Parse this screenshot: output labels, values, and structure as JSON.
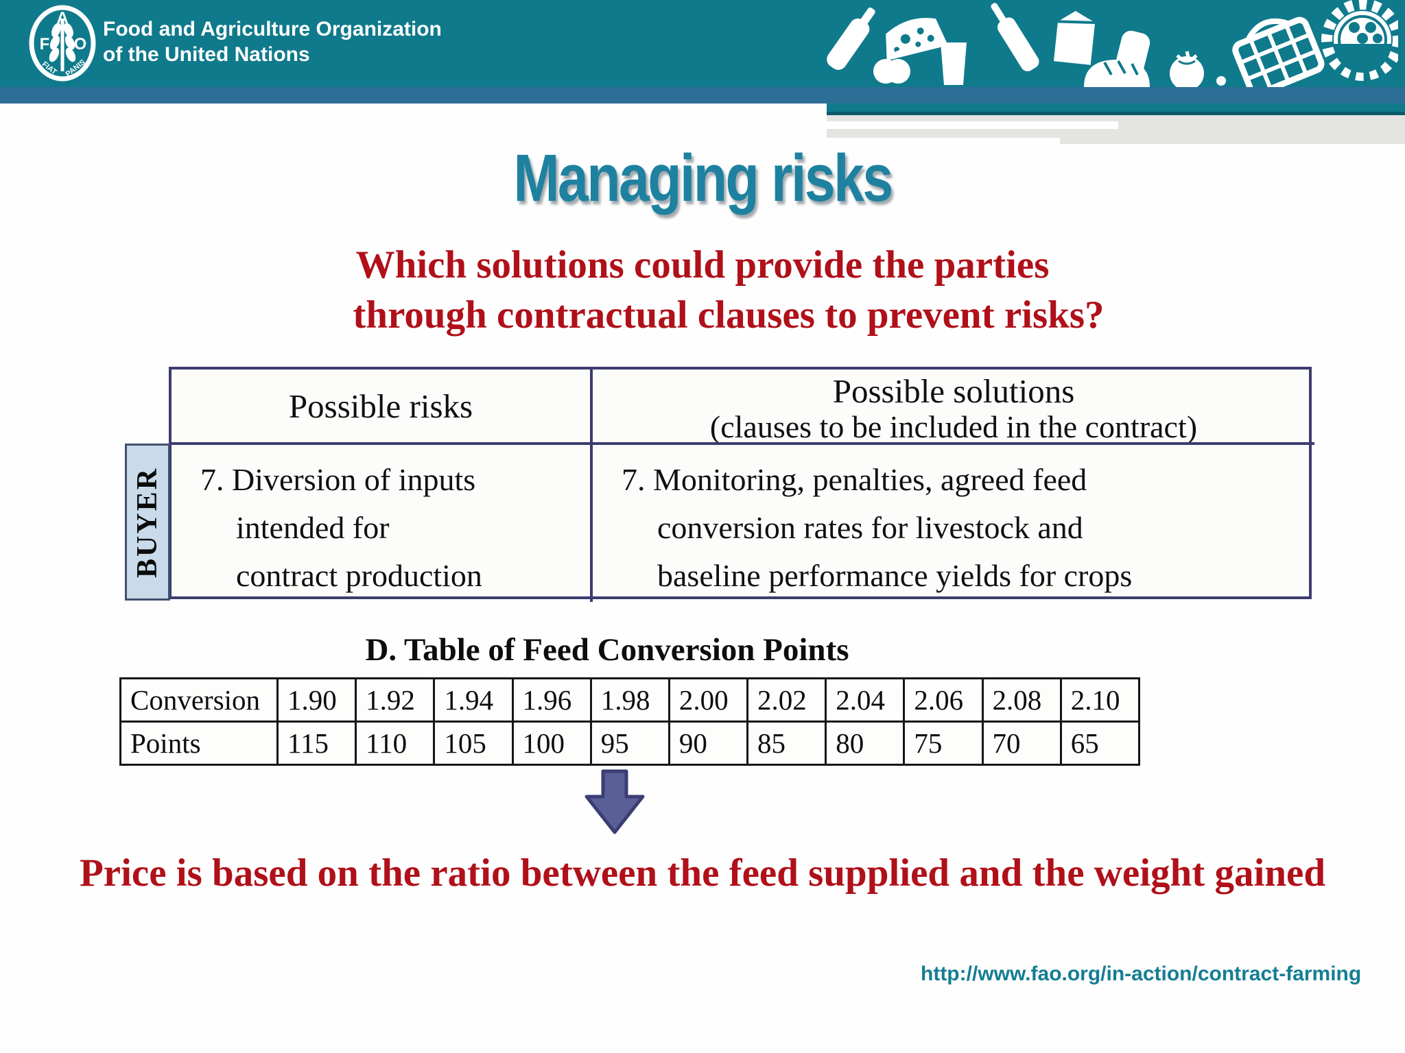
{
  "header": {
    "org_name_line1": "Food and Agriculture Organization",
    "org_name_line2": "of the United Nations",
    "logo_motto_left": "FIAT",
    "logo_motto_right": "PANIS",
    "logo_letters": {
      "f": "F",
      "a": "A",
      "o": "O"
    }
  },
  "title": "Managing risks",
  "subtitle": {
    "line1": "Which solutions could provide the parties",
    "line2": "through contractual clauses to prevent risks?"
  },
  "risk_table": {
    "buyer_label": "BUYER",
    "risks_header": "Possible risks",
    "solutions_header_line1": "Possible solutions",
    "solutions_header_line2": "(clauses to be included in the contract)",
    "risk_lines": [
      "7. Diversion of inputs",
      "intended for",
      "contract production"
    ],
    "solution_lines": [
      "7. Monitoring, penalties, agreed feed",
      "conversion rates for livestock and",
      "baseline performance yields for crops"
    ]
  },
  "conversion_section": {
    "heading": "D. Table of Feed Conversion Points"
  },
  "conversion_table": {
    "row1_label": "Conversion",
    "row2_label": "Points",
    "conversion": [
      "1.90",
      "1.92",
      "1.94",
      "1.96",
      "1.98",
      "2.00",
      "2.02",
      "2.04",
      "2.06",
      "2.08",
      "2.10"
    ],
    "points": [
      "115",
      "110",
      "105",
      "100",
      "95",
      "90",
      "85",
      "80",
      "75",
      "70",
      "65"
    ]
  },
  "chart_data": {
    "type": "table",
    "title": "D. Table of Feed Conversion Points",
    "categories": [
      1.9,
      1.92,
      1.94,
      1.96,
      1.98,
      2.0,
      2.02,
      2.04,
      2.06,
      2.08,
      2.1
    ],
    "series": [
      {
        "name": "Points",
        "values": [
          115,
          110,
          105,
          100,
          95,
          90,
          85,
          80,
          75,
          70,
          65
        ]
      }
    ]
  },
  "price_note": "Price is based on the ratio between the feed supplied and the weight gained",
  "footer_url": "http://www.fao.org/in-action/contract-farming",
  "colors": {
    "header_teal": "#0f7a8b",
    "accent_blue": "#2d6e96",
    "title_teal": "#1e81a0",
    "dark_red": "#b01019",
    "table_border_navy": "#3c3c6e",
    "buyer_fill": "#c9daea",
    "arrow_fill": "#5b5f97",
    "url_teal": "#157d94",
    "gray_band": "#e4e5e1"
  }
}
